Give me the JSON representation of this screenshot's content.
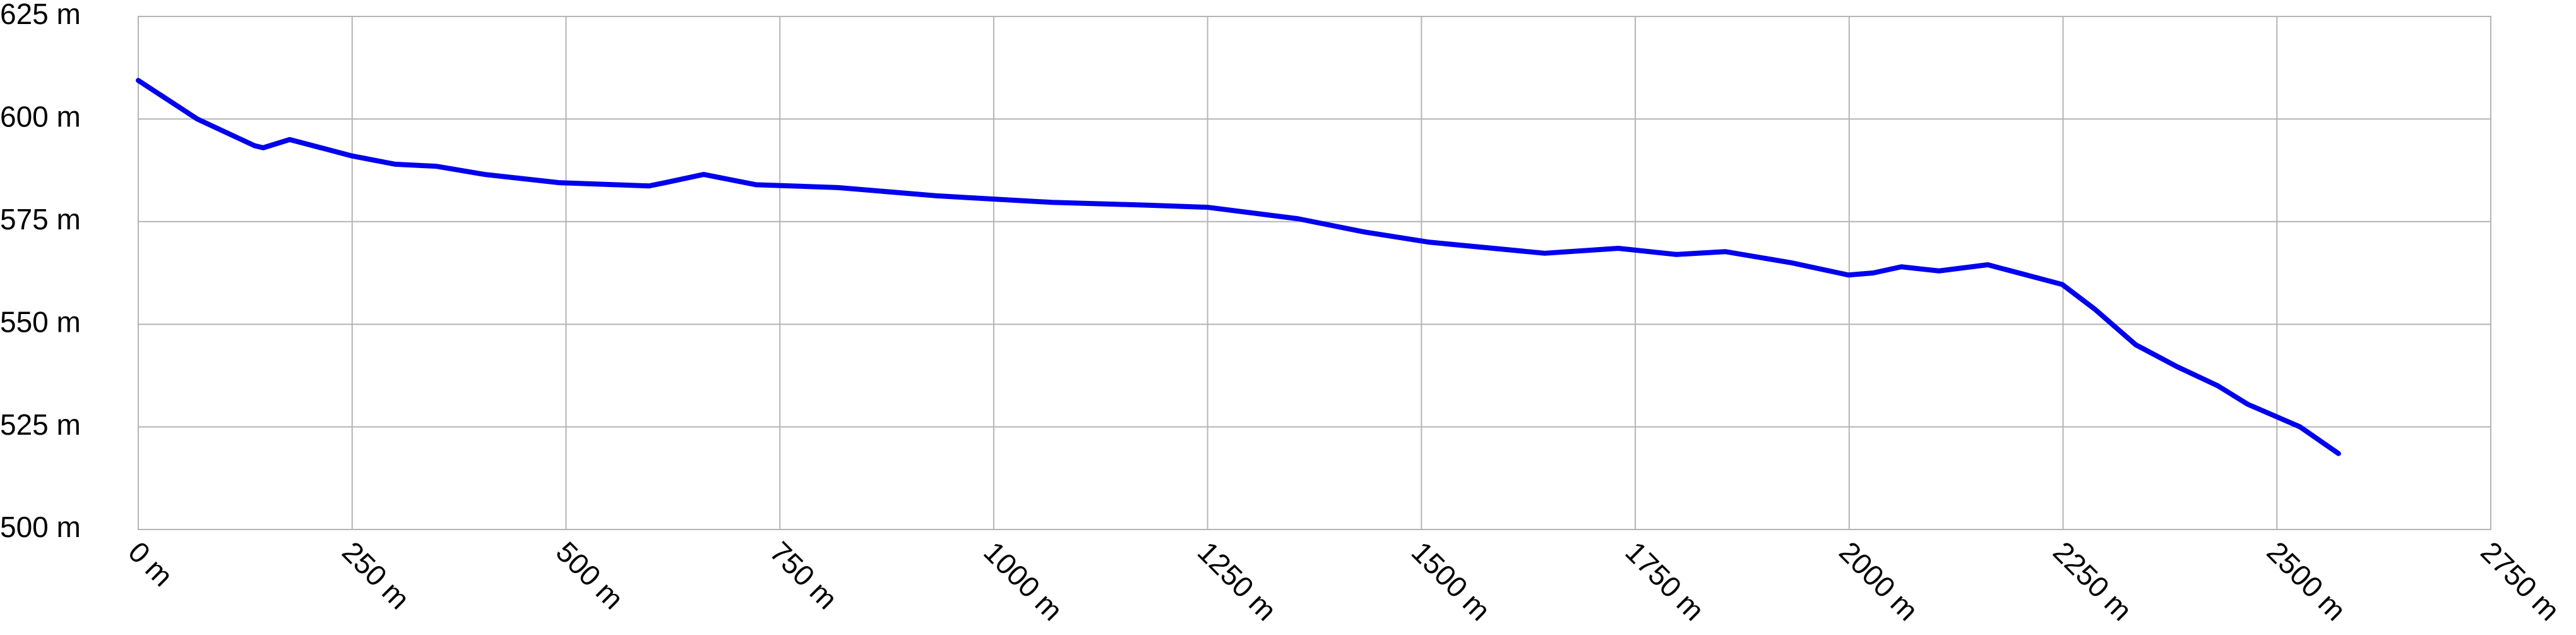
{
  "chart_data": {
    "type": "line",
    "x": [
      0,
      69,
      136,
      146,
      177,
      250,
      300,
      348,
      405,
      492,
      597,
      616,
      661,
      722,
      818,
      933,
      1068,
      1183,
      1250,
      1356,
      1433,
      1509,
      1644,
      1730,
      1798,
      1855,
      1932,
      1999,
      2028,
      2061,
      2105,
      2162,
      2249,
      2287,
      2335,
      2383,
      2431,
      2466,
      2527,
      2572
    ],
    "series": [
      {
        "color": "#0000ee",
        "values": [
          609.4,
          600,
          593.5,
          593,
          595,
          591,
          589,
          588.5,
          586.5,
          584.5,
          583.7,
          584.5,
          586.5,
          584,
          583.3,
          581.3,
          579.7,
          579,
          578.5,
          575.7,
          572.5,
          570,
          567.3,
          568.5,
          567,
          567.7,
          565,
          562,
          562.5,
          564,
          563,
          564.5,
          559.7,
          553.7,
          545,
          539.7,
          535,
          530.5,
          525,
          518.5
        ]
      }
    ],
    "xlim": [
      0,
      2750
    ],
    "xticks": [
      {
        "value": 0,
        "label": "0 m"
      },
      {
        "value": 250,
        "label": "250 m"
      },
      {
        "value": 500,
        "label": "500 m"
      },
      {
        "value": 750,
        "label": "750 m"
      },
      {
        "value": 1000,
        "label": "1000 m"
      },
      {
        "value": 1250,
        "label": "1250 m"
      },
      {
        "value": 1500,
        "label": "1500 m"
      },
      {
        "value": 1750,
        "label": "1750 m"
      },
      {
        "value": 2000,
        "label": "2000 m"
      },
      {
        "value": 2250,
        "label": "2250 m"
      },
      {
        "value": 2500,
        "label": "2500 m"
      },
      {
        "value": 2750,
        "label": "2750 m"
      }
    ],
    "ylim": [
      500,
      625
    ],
    "yticks": [
      {
        "value": 500,
        "label": "500 m"
      },
      {
        "value": 525,
        "label": "525 m"
      },
      {
        "value": 550,
        "label": "550 m"
      },
      {
        "value": 575,
        "label": "575 m"
      },
      {
        "value": 600,
        "label": "600 m"
      },
      {
        "value": 625,
        "label": "625 m"
      }
    ],
    "grid": true
  }
}
